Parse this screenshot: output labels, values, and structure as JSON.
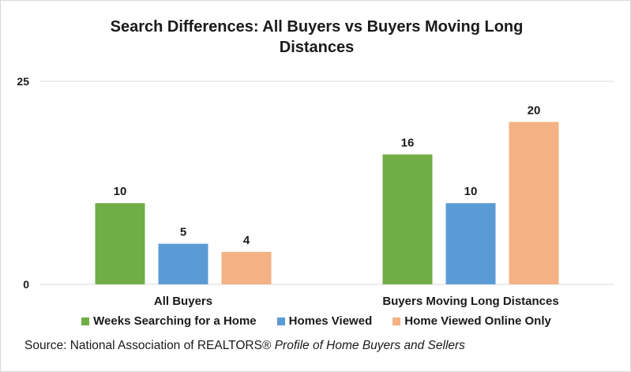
{
  "chart_data": {
    "type": "bar",
    "title": "Search Differences: All Buyers vs Buyers Moving Long Distances",
    "categories": [
      "All Buyers",
      "Buyers Moving Long Distances"
    ],
    "series": [
      {
        "name": "Weeks Searching for a Home",
        "values": [
          10,
          16
        ],
        "color": "#70ad47"
      },
      {
        "name": "Homes Viewed",
        "values": [
          5,
          10
        ],
        "color": "#5b9bd5"
      },
      {
        "name": "Home Viewed Online Only",
        "values": [
          4,
          20
        ],
        "color": "#f4b183"
      }
    ],
    "ylim": [
      0,
      25
    ],
    "yticks": [
      "0",
      "25"
    ],
    "grid": true,
    "legend_position": "bottom"
  },
  "source": {
    "prefix": "Source: National Association of REALTORS®",
    "publication": "Profile of Home Buyers and Sellers"
  }
}
